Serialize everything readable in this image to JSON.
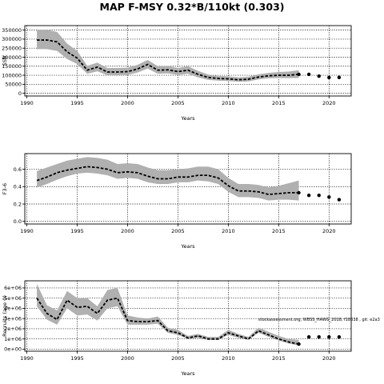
{
  "figure": {
    "title": "MAP F-MSY 0.32*B/110kt (0.303)",
    "annotation": "stockassessment.org, WBSS_HAWG_2018, f18338 , git: e2a3"
  },
  "chart_data": [
    {
      "type": "line",
      "xlabel": "Years",
      "ylabel": "SSB",
      "xlim": [
        1989.8,
        2022.2
      ],
      "ylim": [
        -15000,
        375000
      ],
      "xticks": [
        1990,
        1995,
        2000,
        2005,
        2010,
        2015,
        2020
      ],
      "yticks": [
        0,
        50000,
        100000,
        150000,
        200000,
        250000,
        300000,
        350000
      ],
      "ytick_labels": [
        "0",
        "50000",
        "100000",
        "150000",
        "200000",
        "250000",
        "300000",
        "350000"
      ],
      "grid": true,
      "x": [
        1991,
        1992,
        1993,
        1994,
        1995,
        1996,
        1997,
        1998,
        1999,
        2000,
        2001,
        2002,
        2003,
        2004,
        2005,
        2006,
        2007,
        2008,
        2009,
        2010,
        2011,
        2012,
        2013,
        2014,
        2015,
        2016,
        2017
      ],
      "estimate": [
        295000,
        295000,
        285000,
        230000,
        195000,
        128000,
        145000,
        118000,
        118000,
        120000,
        135000,
        160000,
        128000,
        130000,
        120000,
        128000,
        105000,
        88000,
        82000,
        80000,
        75000,
        78000,
        90000,
        97000,
        100000,
        100000,
        105000
      ],
      "lower": [
        245000,
        245000,
        235000,
        190000,
        162000,
        108000,
        122000,
        100000,
        100000,
        102000,
        115000,
        137000,
        108000,
        110000,
        102000,
        108000,
        88000,
        74000,
        70000,
        68000,
        64000,
        66000,
        77000,
        83000,
        85000,
        84000,
        85000
      ],
      "upper": [
        352000,
        352000,
        340000,
        275000,
        235000,
        152000,
        170000,
        140000,
        140000,
        142000,
        158000,
        185000,
        150000,
        152000,
        140000,
        150000,
        124000,
        104000,
        96000,
        94000,
        88000,
        92000,
        105000,
        113000,
        118000,
        120000,
        128000
      ],
      "forecast_x": [
        2017,
        2018,
        2019,
        2020,
        2021
      ],
      "forecast_y": [
        105000,
        105000,
        95000,
        87000,
        88000
      ]
    },
    {
      "type": "line",
      "xlabel": "Years",
      "ylabel": "F3-6",
      "xlim": [
        1989.8,
        2022.2
      ],
      "ylim": [
        -0.03,
        0.78
      ],
      "xticks": [
        1990,
        1995,
        2000,
        2005,
        2010,
        2015,
        2020
      ],
      "yticks": [
        0,
        0.2,
        0.4,
        0.6
      ],
      "ytick_labels": [
        "0.0",
        "0.2",
        "0.4",
        "0.6"
      ],
      "grid": true,
      "x": [
        1991,
        1992,
        1993,
        1994,
        1995,
        1996,
        1997,
        1998,
        1999,
        2000,
        2001,
        2002,
        2003,
        2004,
        2005,
        2006,
        2007,
        2008,
        2009,
        2010,
        2011,
        2012,
        2013,
        2014,
        2015,
        2016,
        2017
      ],
      "estimate": [
        0.47,
        0.51,
        0.56,
        0.59,
        0.61,
        0.63,
        0.62,
        0.6,
        0.56,
        0.57,
        0.56,
        0.52,
        0.49,
        0.49,
        0.51,
        0.51,
        0.53,
        0.53,
        0.5,
        0.41,
        0.35,
        0.35,
        0.34,
        0.31,
        0.32,
        0.33,
        0.33
      ],
      "lower": [
        0.39,
        0.43,
        0.48,
        0.52,
        0.55,
        0.56,
        0.55,
        0.53,
        0.49,
        0.5,
        0.49,
        0.45,
        0.43,
        0.43,
        0.45,
        0.45,
        0.47,
        0.46,
        0.43,
        0.34,
        0.28,
        0.28,
        0.27,
        0.24,
        0.25,
        0.25,
        0.24
      ],
      "upper": [
        0.58,
        0.62,
        0.66,
        0.7,
        0.72,
        0.74,
        0.73,
        0.71,
        0.66,
        0.67,
        0.66,
        0.62,
        0.59,
        0.59,
        0.6,
        0.61,
        0.63,
        0.63,
        0.6,
        0.5,
        0.43,
        0.43,
        0.42,
        0.39,
        0.41,
        0.44,
        0.47
      ],
      "forecast_x": [
        2017,
        2018,
        2019,
        2020,
        2021
      ],
      "forecast_y": [
        0.33,
        0.3,
        0.3,
        0.28,
        0.25
      ]
    },
    {
      "type": "line",
      "xlabel": "Years",
      "ylabel": "Recruits (age 0)",
      "xlim": [
        1989.8,
        2022.2
      ],
      "ylim": [
        -200000,
        6700000
      ],
      "xticks": [
        1990,
        1995,
        2000,
        2005,
        2010,
        2015,
        2020
      ],
      "yticks": [
        0,
        1000000,
        2000000,
        3000000,
        4000000,
        5000000,
        6000000
      ],
      "ytick_labels": [
        "0e+00",
        "1e+06",
        "2e+06",
        "3e+06",
        "4e+06",
        "5e+06",
        "6e+06"
      ],
      "grid": true,
      "x": [
        1991,
        1992,
        1993,
        1994,
        1995,
        1996,
        1997,
        1998,
        1999,
        2000,
        2001,
        2002,
        2003,
        2004,
        2005,
        2006,
        2007,
        2008,
        2009,
        2010,
        2011,
        2012,
        2013,
        2014,
        2015,
        2016,
        2017
      ],
      "estimate": [
        5000000,
        3500000,
        2900000,
        4800000,
        4100000,
        4200000,
        3500000,
        4800000,
        5000000,
        2800000,
        2700000,
        2700000,
        2800000,
        1800000,
        1600000,
        1100000,
        1300000,
        1000000,
        1000000,
        1600000,
        1300000,
        1000000,
        1800000,
        1400000,
        1000000,
        700000,
        500000
      ],
      "lower": [
        4200000,
        2900000,
        2400000,
        4000000,
        3300000,
        3400000,
        2800000,
        4000000,
        4200000,
        2400000,
        2400000,
        2400000,
        2500000,
        1600000,
        1400000,
        1000000,
        1100000,
        900000,
        900000,
        1400000,
        1100000,
        900000,
        1600000,
        1200000,
        850000,
        550000,
        350000
      ],
      "upper": [
        6400000,
        4300000,
        3800000,
        5700000,
        5000000,
        5000000,
        4200000,
        5800000,
        6000000,
        3300000,
        3100000,
        3000000,
        3200000,
        2100000,
        1900000,
        1300000,
        1500000,
        1200000,
        1200000,
        1900000,
        1500000,
        1200000,
        2100000,
        1700000,
        1300000,
        1000000,
        900000
      ],
      "forecast_x": [
        2017,
        2018,
        2019,
        2020,
        2021
      ],
      "forecast_y": [
        500000,
        1200000,
        1200000,
        1200000,
        1200000
      ]
    }
  ]
}
